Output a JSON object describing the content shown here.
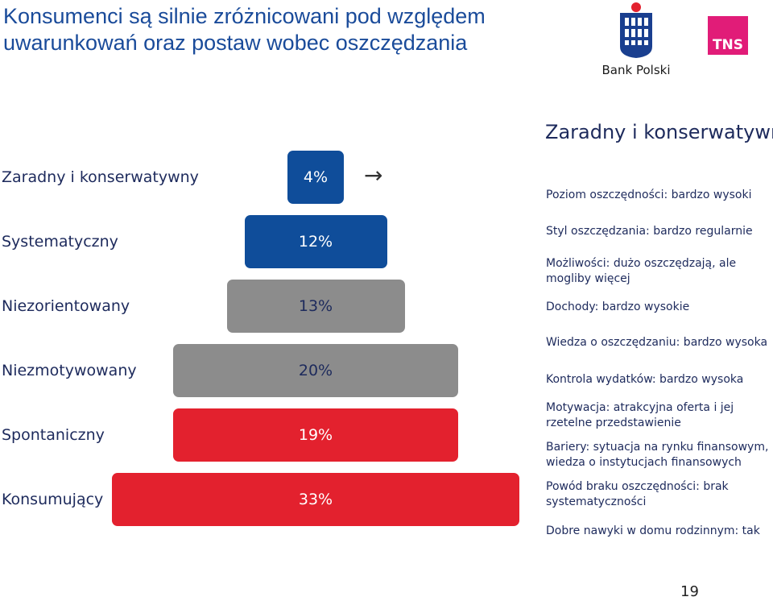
{
  "title": {
    "line1": "Konsumenci są silnie zróżnicowani pod względem",
    "line2": "uwarunkowań oraz postaw wobec oszczędzania"
  },
  "logos": {
    "bank_name": "Bank Polski",
    "tns_text": "TNS"
  },
  "colors": {
    "blue_dark": "#1a4b9a",
    "blue": "#0f4d9a",
    "gray": "#8c8c8c",
    "red": "#e3212e",
    "tns_magenta": "#e11c78"
  },
  "chart_data": {
    "type": "bar",
    "orientation": "horizontal",
    "categories": [
      "Zaradny i konserwatywny",
      "Systematyczny",
      "Niezorientowany",
      "Niezmotywowany",
      "Spontaniczny",
      "Konsumujący"
    ],
    "values": [
      4,
      12,
      13,
      20,
      19,
      33
    ],
    "value_labels": [
      "4%",
      "12%",
      "13%",
      "20%",
      "19%",
      "33%"
    ],
    "colors": [
      "#0f4d9a",
      "#0f4d9a",
      "#8c8c8c",
      "#8c8c8c",
      "#e3212e",
      "#e3212e"
    ],
    "unit": "%"
  },
  "detail": {
    "title": "Zaradny i konserwatywny",
    "items": [
      "Poziom oszczędności: bardzo wysoki",
      "Styl oszczędzania: bardzo regularnie",
      "Możliwości: dużo oszczędzają, ale mogliby więcej",
      "Dochody: bardzo wysokie",
      "Wiedza o oszczędzaniu: bardzo wysoka",
      "Kontrola wydatków: bardzo wysoka",
      "Motywacja: atrakcyjna oferta i jej rzetelne przedstawienie",
      "Bariery: sytuacja na rynku finansowym, wiedza o instytucjach finansowych",
      "Powód braku oszczędności: brak systematyczności",
      "Dobre nawyki w domu rodzinnym: tak"
    ]
  },
  "page_number": "19"
}
